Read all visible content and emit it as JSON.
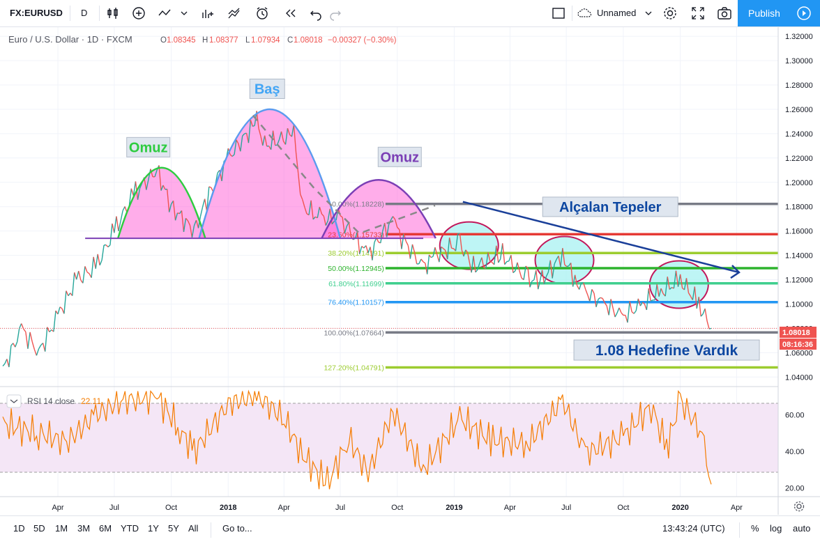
{
  "toolbar": {
    "symbol": "FX:EURUSD",
    "interval": "D",
    "layout_name": "Unnamed",
    "publish_label": "Publish"
  },
  "legend": {
    "title": "Euro / U.S. Dollar · 1D · FXCM",
    "o_label": "O",
    "o": "1.08345",
    "h_label": "H",
    "h": "1.08377",
    "l_label": "L",
    "l": "1.07934",
    "c_label": "C",
    "c": "1.08018",
    "change": "−0.00327 (−0.30%)"
  },
  "colors": {
    "down": "#ef5350",
    "up": "#26a69a",
    "rsi_line": "#f57c00",
    "rsi_band": "#f3e5f5",
    "accent": "#2196f3"
  },
  "chart_data": [
    {
      "type": "line",
      "title": "Euro / U.S. Dollar",
      "x_ticks": [
        "Apr",
        "Jul",
        "Oct",
        "2018",
        "Apr",
        "Jul",
        "Oct",
        "2019",
        "Apr",
        "Jul",
        "Oct",
        "2020",
        "Apr"
      ],
      "y_ticks": [
        "1.32000",
        "1.30000",
        "1.28000",
        "1.26000",
        "1.24000",
        "1.22000",
        "1.20000",
        "1.18000",
        "1.16000",
        "1.14000",
        "1.12000",
        "1.10000",
        "1.08000",
        "1.06000",
        "1.04000"
      ],
      "ylim": [
        1.035,
        1.3235
      ],
      "price_label": "1.08018",
      "countdown_label": "08:16:36",
      "series": [
        {
          "x": [
            "2017-01-02",
            "2017-02-01",
            "2017-03-01",
            "2017-04-01",
            "2017-05-01",
            "2017-06-01",
            "2017-07-01",
            "2017-08-01",
            "2017-09-08",
            "2017-10-01",
            "2017-11-07",
            "2017-12-01",
            "2018-01-01",
            "2018-02-16",
            "2018-03-01",
            "2018-04-17",
            "2018-05-01",
            "2018-06-01",
            "2018-07-01",
            "2018-08-15",
            "2018-09-24",
            "2018-10-01",
            "2018-11-12",
            "2018-12-01",
            "2019-01-10",
            "2019-02-01",
            "2019-03-20",
            "2019-04-30",
            "2019-05-23",
            "2019-06-25",
            "2019-07-15",
            "2019-08-01",
            "2019-09-01",
            "2019-10-01",
            "2019-11-01",
            "2019-12-01",
            "2020-01-01",
            "2020-01-31",
            "2020-02-20"
          ],
          "values": [
            1.045,
            1.08,
            1.06,
            1.09,
            1.12,
            1.13,
            1.16,
            1.19,
            1.21,
            1.18,
            1.16,
            1.19,
            1.22,
            1.25,
            1.23,
            1.24,
            1.18,
            1.17,
            1.17,
            1.14,
            1.17,
            1.16,
            1.13,
            1.14,
            1.15,
            1.13,
            1.14,
            1.12,
            1.12,
            1.14,
            1.12,
            1.11,
            1.1,
            1.09,
            1.1,
            1.11,
            1.12,
            1.1,
            1.08
          ]
        }
      ],
      "fib_levels": [
        {
          "label": "0.00%(1.18228)",
          "value": 1.18228,
          "color": "#787b86"
        },
        {
          "label": "23.60%(1.15733)",
          "value": 1.15733,
          "color": "#e53935"
        },
        {
          "label": "38.20%(1.14191)",
          "value": 1.14191,
          "color": "#9ccc2f"
        },
        {
          "label": "50.00%(1.12945)",
          "value": 1.12945,
          "color": "#2db32d"
        },
        {
          "label": "61.80%(1.11699)",
          "value": 1.11699,
          "color": "#3fcf8e"
        },
        {
          "label": "76.40%(1.10157)",
          "value": 1.10157,
          "color": "#2196f3"
        },
        {
          "label": "100.00%(1.07664)",
          "value": 1.07664,
          "color": "#787b86"
        },
        {
          "label": "127.20%(1.04791)",
          "value": 1.04791,
          "color": "#9ccc2f"
        }
      ],
      "annotations": [
        {
          "text": "Omuz",
          "color": "#2ecc40"
        },
        {
          "text": "Baş",
          "color": "#42a5f5"
        },
        {
          "text": "Omuz",
          "color": "#7b3fb5"
        },
        {
          "text": "Alçalan Tepeler",
          "color": "#0d47a1"
        },
        {
          "text": "1.08 Hedefine Vardık",
          "color": "#0d47a1"
        }
      ]
    },
    {
      "type": "line",
      "title": "RSI 14 close",
      "current_value": "22.11",
      "y_ticks": [
        "60.00",
        "40.00",
        "20.00"
      ],
      "ylim": [
        16,
        74
      ],
      "band": [
        30,
        70
      ],
      "series": [
        {
          "x": [
            "2017-01-02",
            "2017-03-01",
            "2017-04-15",
            "2017-06-01",
            "2017-07-15",
            "2017-09-08",
            "2017-10-15",
            "2017-11-07",
            "2018-01-01",
            "2018-02-16",
            "2018-04-01",
            "2018-05-01",
            "2018-06-10",
            "2018-07-15",
            "2018-08-15",
            "2018-09-24",
            "2018-11-12",
            "2019-01-10",
            "2019-03-01",
            "2019-04-30",
            "2019-06-25",
            "2019-08-01",
            "2019-10-01",
            "2019-11-15",
            "2019-12-10",
            "2020-01-01",
            "2020-02-05",
            "2020-02-20"
          ],
          "values": [
            55,
            50,
            45,
            60,
            68,
            70,
            52,
            40,
            66,
            71,
            58,
            38,
            22,
            47,
            28,
            62,
            30,
            58,
            46,
            44,
            68,
            39,
            48,
            65,
            42,
            68,
            50,
            22
          ]
        }
      ]
    }
  ],
  "bottombar": {
    "ranges": [
      "1D",
      "5D",
      "1M",
      "3M",
      "6M",
      "YTD",
      "1Y",
      "5Y",
      "All"
    ],
    "goto_label": "Go to...",
    "clock": "13:43:24 (UTC)",
    "percent_label": "%",
    "log_label": "log",
    "auto_label": "auto"
  }
}
